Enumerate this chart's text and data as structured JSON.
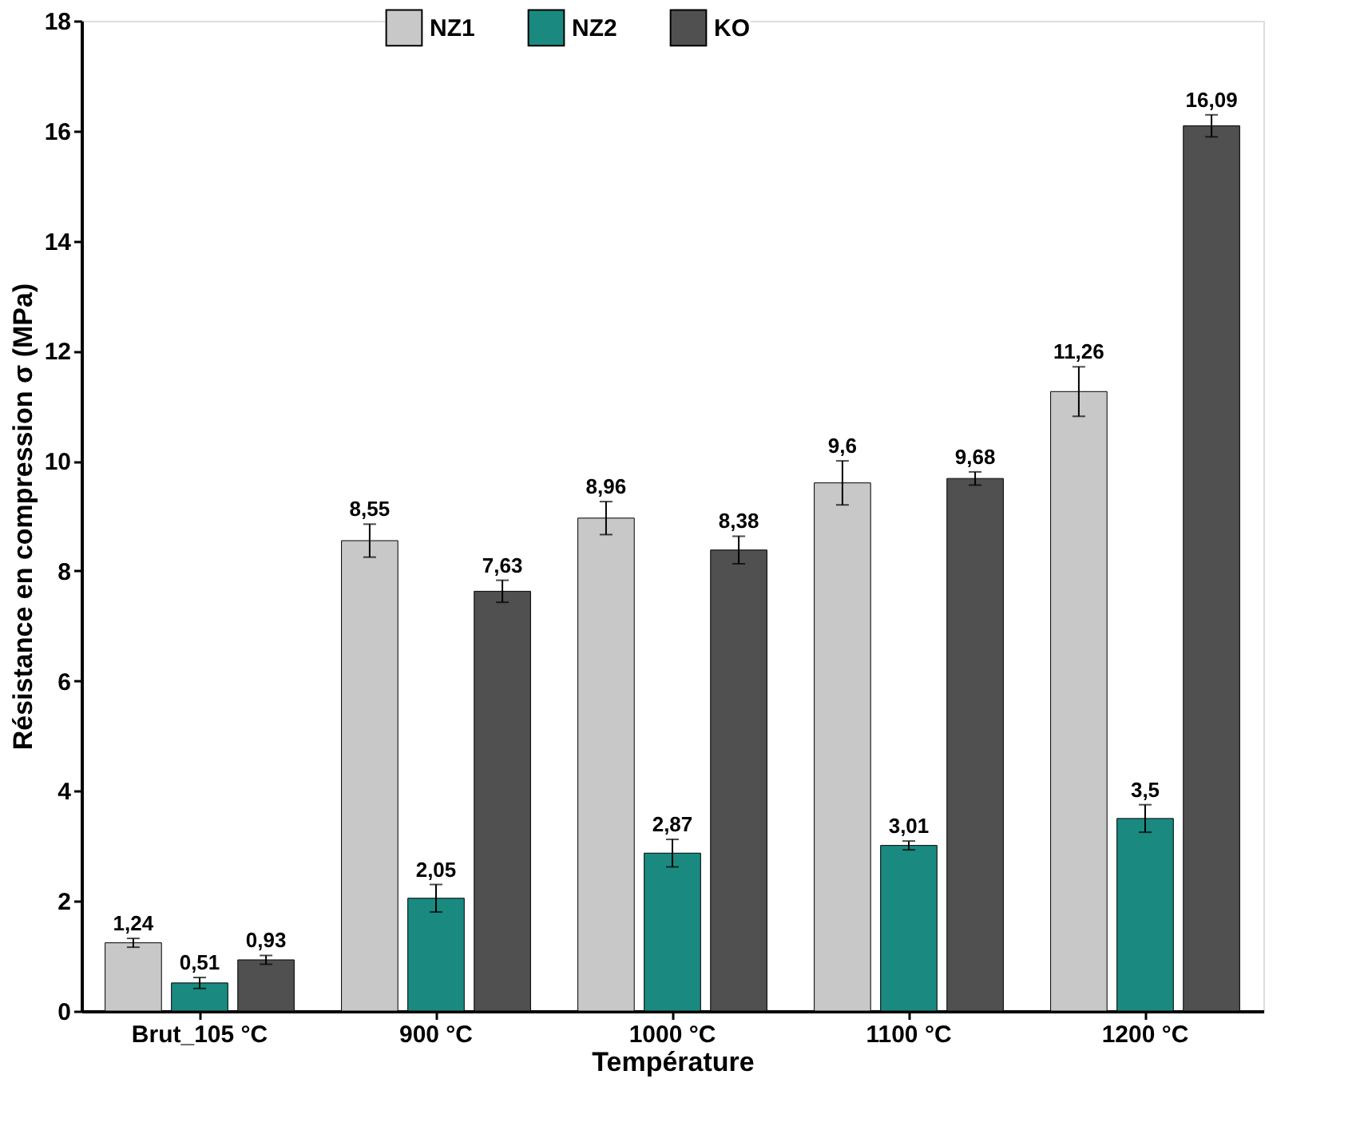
{
  "chart_data": {
    "type": "bar",
    "xlabel": "Température",
    "ylabel": "Résistance en compression σ (MPa)",
    "categories": [
      "Brut_105 °C",
      "900 °C",
      "1000 °C",
      "1100 °C",
      "1200 °C"
    ],
    "series": [
      {
        "name": "NZ1",
        "color": "#c8c8c8",
        "values": [
          1.24,
          8.55,
          8.96,
          9.6,
          11.26
        ],
        "errors": [
          0.08,
          0.3,
          0.3,
          0.4,
          0.45
        ],
        "value_labels": [
          "1,24",
          "8,55",
          "8,96",
          "9,6",
          "11,26"
        ]
      },
      {
        "name": "NZ2",
        "color": "#1a8a80",
        "values": [
          0.51,
          2.05,
          2.87,
          3.01,
          3.5
        ],
        "errors": [
          0.1,
          0.25,
          0.25,
          0.08,
          0.25
        ],
        "value_labels": [
          "0,51",
          "2,05",
          "2,87",
          "3,01",
          "3,5"
        ]
      },
      {
        "name": "KO",
        "color": "#505050",
        "values": [
          0.93,
          7.63,
          8.38,
          9.68,
          16.09
        ],
        "errors": [
          0.08,
          0.2,
          0.25,
          0.12,
          0.2
        ],
        "value_labels": [
          "0,93",
          "7,63",
          "8,38",
          "9,68",
          "16,09"
        ]
      }
    ],
    "ylim": [
      0,
      18
    ],
    "yticks": [
      0,
      2,
      4,
      6,
      8,
      10,
      12,
      14,
      16,
      18
    ],
    "grid": false,
    "legend": "top"
  }
}
